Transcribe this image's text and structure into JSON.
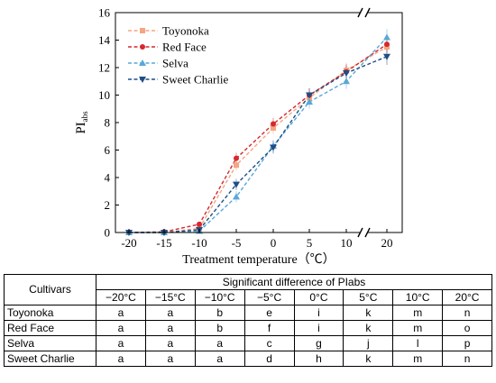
{
  "chart_data": {
    "type": "line",
    "ylabel": "PI",
    "ylabel_sub": "abs",
    "xlabel": "Treatment temperature（℃）",
    "categories": [
      "-20",
      "-15",
      "-10",
      "-5",
      "0",
      "5",
      "10",
      "20"
    ],
    "ylim": [
      0,
      16
    ],
    "yticks": [
      "0",
      "2",
      "4",
      "6",
      "8",
      "10",
      "12",
      "14",
      "16"
    ],
    "axis_break": "between 10 and 20",
    "grid": false,
    "legend_position": "top-left",
    "series": [
      {
        "name": "Toyonoka",
        "color": "#f4a582",
        "marker": "square",
        "values": [
          0.0,
          0.0,
          0.3,
          4.9,
          7.6,
          9.8,
          11.8,
          13.5
        ]
      },
      {
        "name": "Red Face",
        "color": "#d6282f",
        "marker": "circle",
        "values": [
          0.0,
          0.05,
          0.6,
          5.4,
          7.9,
          10.0,
          11.7,
          13.7
        ]
      },
      {
        "name": "Selva",
        "color": "#5aa7d8",
        "marker": "triangle-up",
        "values": [
          0.0,
          0.0,
          0.1,
          2.6,
          6.3,
          9.5,
          11.0,
          14.2
        ]
      },
      {
        "name": "Sweet Charlie",
        "color": "#1f4e84",
        "marker": "triangle-down",
        "values": [
          0.0,
          0.0,
          0.2,
          3.5,
          6.2,
          10.0,
          11.6,
          12.8
        ]
      }
    ]
  },
  "table": {
    "header_cultivars": "Cultivars",
    "header_group": "Significant difference of PIabs",
    "columns": [
      "−20°C",
      "−15°C",
      "−10°C",
      "−5°C",
      "0°C",
      "5°C",
      "10°C",
      "20°C"
    ],
    "rows": [
      {
        "cultivar": "Toyonoka",
        "cells": [
          "a",
          "a",
          "b",
          "e",
          "i",
          "k",
          "m",
          "n"
        ]
      },
      {
        "cultivar": "Red Face",
        "cells": [
          "a",
          "a",
          "b",
          "f",
          "i",
          "k",
          "m",
          "o"
        ]
      },
      {
        "cultivar": "Selva",
        "cells": [
          "a",
          "a",
          "a",
          "c",
          "g",
          "j",
          "l",
          "p"
        ]
      },
      {
        "cultivar": "Sweet Charlie",
        "cells": [
          "a",
          "a",
          "a",
          "d",
          "h",
          "k",
          "m",
          "n"
        ]
      }
    ]
  }
}
